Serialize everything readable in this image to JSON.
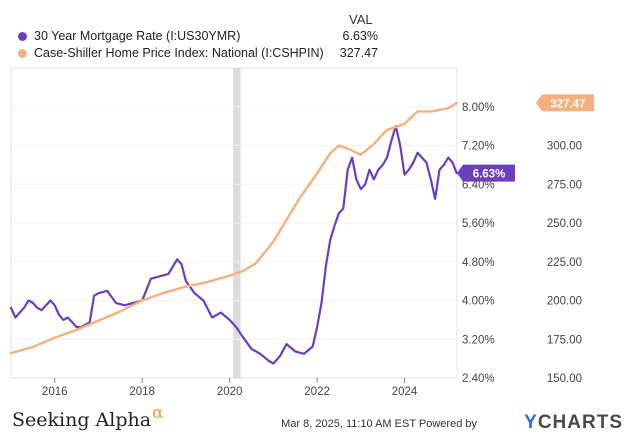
{
  "legend": {
    "val_header": "VAL",
    "series": [
      {
        "name": "30 Year Mortgage Rate (I:US30YMR)",
        "value": "6.63%",
        "color": "#6a3ec1"
      },
      {
        "name": "Case-Shiller Home Price Index: National (I:CSHPIN)",
        "value": "327.47",
        "color": "#f5b07d"
      }
    ]
  },
  "chart_data": {
    "type": "line",
    "x_ticks": [
      "2016",
      "2018",
      "2020",
      "2022",
      "2024"
    ],
    "x_range": [
      2015.0,
      2025.2
    ],
    "recession_band": [
      2020.08,
      2020.25
    ],
    "left_axis": {
      "ticks": [
        "8.00%",
        "7.20%",
        "6.40%",
        "5.60%",
        "4.80%",
        "4.00%",
        "3.20%",
        "2.40%"
      ],
      "range": [
        2.4,
        8.8
      ]
    },
    "right_axis": {
      "ticks": [
        "300.00",
        "275.00",
        "250.00",
        "225.00",
        "200.00",
        "175.00",
        "150.00"
      ],
      "range": [
        150,
        350
      ]
    },
    "series": [
      {
        "name": "30 Year Mortgage Rate (I:US30YMR)",
        "axis": "left",
        "color": "#6a3ec1",
        "end_label": "6.63%",
        "x": [
          2015.0,
          2015.1,
          2015.2,
          2015.3,
          2015.4,
          2015.5,
          2015.6,
          2015.7,
          2015.8,
          2015.9,
          2016.0,
          2016.1,
          2016.2,
          2016.3,
          2016.4,
          2016.5,
          2016.6,
          2016.7,
          2016.8,
          2016.9,
          2017.0,
          2017.2,
          2017.4,
          2017.6,
          2017.8,
          2018.0,
          2018.2,
          2018.4,
          2018.6,
          2018.8,
          2018.9,
          2019.0,
          2019.2,
          2019.4,
          2019.6,
          2019.8,
          2020.0,
          2020.15,
          2020.3,
          2020.5,
          2020.7,
          2020.9,
          2021.0,
          2021.15,
          2021.3,
          2021.5,
          2021.7,
          2021.9,
          2022.0,
          2022.1,
          2022.2,
          2022.3,
          2022.4,
          2022.5,
          2022.6,
          2022.7,
          2022.8,
          2022.9,
          2023.0,
          2023.1,
          2023.2,
          2023.3,
          2023.4,
          2023.5,
          2023.6,
          2023.7,
          2023.8,
          2023.9,
          2024.0,
          2024.1,
          2024.2,
          2024.3,
          2024.4,
          2024.5,
          2024.6,
          2024.7,
          2024.8,
          2024.9,
          2025.0,
          2025.1,
          2025.19
        ],
        "values": [
          3.85,
          3.65,
          3.75,
          3.85,
          4.0,
          3.95,
          3.85,
          3.8,
          3.9,
          4.0,
          3.9,
          3.7,
          3.6,
          3.65,
          3.55,
          3.45,
          3.45,
          3.5,
          3.55,
          4.1,
          4.15,
          4.2,
          3.95,
          3.9,
          3.95,
          4.0,
          4.45,
          4.5,
          4.55,
          4.85,
          4.75,
          4.4,
          4.15,
          4.0,
          3.65,
          3.75,
          3.6,
          3.45,
          3.25,
          3.0,
          2.9,
          2.75,
          2.7,
          2.85,
          3.1,
          2.95,
          2.9,
          3.05,
          3.45,
          3.95,
          4.7,
          5.25,
          5.55,
          5.8,
          5.9,
          6.7,
          6.95,
          6.5,
          6.3,
          6.4,
          6.7,
          6.5,
          6.7,
          6.8,
          6.95,
          7.3,
          7.6,
          7.2,
          6.6,
          6.7,
          6.85,
          7.05,
          6.95,
          6.85,
          6.5,
          6.1,
          6.7,
          6.8,
          6.95,
          6.85,
          6.63
        ]
      },
      {
        "name": "Case-Shiller Home Price Index: National (I:CSHPIN)",
        "axis": "right",
        "color": "#f5b07d",
        "end_label": "327.47",
        "x": [
          2015.0,
          2015.5,
          2016.0,
          2016.5,
          2017.0,
          2017.5,
          2018.0,
          2018.5,
          2019.0,
          2019.5,
          2020.0,
          2020.3,
          2020.6,
          2021.0,
          2021.3,
          2021.6,
          2022.0,
          2022.3,
          2022.5,
          2022.7,
          2023.0,
          2023.3,
          2023.6,
          2024.0,
          2024.3,
          2024.6,
          2025.0,
          2025.19
        ],
        "values": [
          166,
          170,
          176,
          181,
          187,
          193,
          200,
          205,
          209,
          212,
          216,
          219,
          224,
          238,
          252,
          266,
          282,
          295,
          300,
          298,
          294,
          301,
          310,
          314,
          322,
          322,
          324,
          327.47
        ]
      }
    ]
  },
  "footer": {
    "brand": "Seeking Alpha",
    "brand_symbol": "α",
    "timestamp": "Mar 8, 2025, 11:10 AM EST Powered by",
    "logo_y": "Y",
    "logo_rest": "CHARTS"
  }
}
